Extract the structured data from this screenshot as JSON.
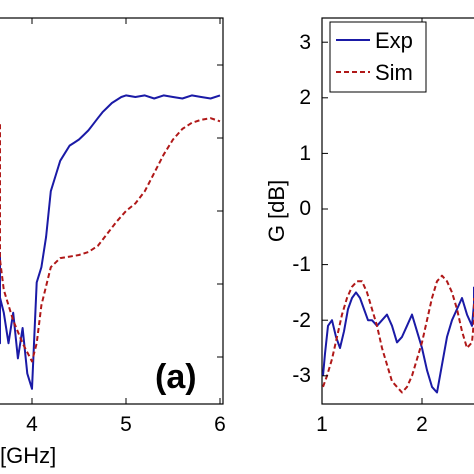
{
  "chart_data": [
    {
      "type": "line",
      "panel_label": "(a)",
      "xlabel": "[GHz]",
      "ylabel": "",
      "xlim": [
        3,
        6
      ],
      "x_ticks": [
        4,
        5,
        6
      ],
      "series": [
        {
          "name": "Exp",
          "color": "#1a1aa6",
          "style": "solid",
          "x": [
            3.0,
            3.05,
            3.1,
            3.15,
            3.2,
            3.25,
            3.3,
            3.35,
            3.4,
            3.45,
            3.5,
            3.55,
            3.6,
            3.65,
            3.7,
            3.75,
            3.8,
            3.85,
            3.9,
            3.95,
            4.0,
            4.05,
            4.1,
            4.15,
            4.2,
            4.25,
            4.3,
            4.35,
            4.4,
            4.45,
            4.5,
            4.55,
            4.6,
            4.65,
            4.7,
            4.75,
            4.8,
            4.85,
            4.9,
            4.95,
            5.0,
            5.1,
            5.2,
            5.3,
            5.4,
            5.5,
            5.6,
            5.7,
            5.8,
            5.9,
            6.0
          ],
          "y": [
            -10,
            -10,
            -11,
            -12,
            -14,
            -15,
            -14,
            -16,
            -15,
            -14,
            -12,
            -11,
            -12,
            -13,
            -14,
            -16,
            -14,
            -17,
            -15,
            -18,
            -19,
            -12,
            -11,
            -9,
            -6,
            -5,
            -4,
            -3.5,
            -3.0,
            -2.8,
            -2.6,
            -2.3,
            -2.0,
            -1.6,
            -1.2,
            -0.8,
            -0.5,
            -0.2,
            0.0,
            0.2,
            0.3,
            0.2,
            0.3,
            0.1,
            0.3,
            0.2,
            0.1,
            0.3,
            0.2,
            0.1,
            0.3
          ]
        },
        {
          "name": "Sim",
          "color": "#b01818",
          "style": "dashed",
          "x": [
            3.0,
            3.1,
            3.2,
            3.3,
            3.4,
            3.5,
            3.6,
            3.7,
            3.8,
            3.9,
            4.0,
            4.05,
            4.1,
            4.2,
            4.3,
            4.4,
            4.5,
            4.6,
            4.7,
            4.8,
            4.9,
            5.0,
            5.1,
            5.2,
            5.3,
            5.4,
            5.5,
            5.6,
            5.7,
            5.8,
            5.9,
            6.0
          ],
          "y": [
            -1.6,
            -2.0,
            -3.0,
            -4.5,
            -6.5,
            -8.5,
            -10.5,
            -12.5,
            -14.5,
            -16.0,
            -17.2,
            -16.0,
            -13.5,
            -11.0,
            -10.4,
            -10.3,
            -10.2,
            -10.0,
            -9.6,
            -8.8,
            -8.0,
            -7.3,
            -6.8,
            -6.0,
            -4.8,
            -3.6,
            -2.6,
            -1.9,
            -1.5,
            -1.3,
            -1.2,
            -1.4
          ]
        }
      ]
    },
    {
      "type": "line",
      "ylabel": "G [dB]",
      "xlabel": "",
      "xlim": [
        1,
        2.6
      ],
      "ylim": [
        -3.5,
        3.5
      ],
      "x_ticks": [
        1,
        2
      ],
      "y_ticks": [
        -3,
        -2,
        -1,
        0,
        1,
        2,
        3
      ],
      "legend_position": "top-left",
      "series": [
        {
          "name": "Exp",
          "color": "#1a1aa6",
          "style": "solid",
          "x": [
            1.0,
            1.03,
            1.06,
            1.1,
            1.14,
            1.18,
            1.22,
            1.26,
            1.3,
            1.34,
            1.38,
            1.42,
            1.46,
            1.5,
            1.55,
            1.6,
            1.65,
            1.7,
            1.75,
            1.8,
            1.85,
            1.9,
            1.95,
            2.0,
            2.05,
            2.1,
            2.15,
            2.2,
            2.25,
            2.3,
            2.35,
            2.4,
            2.45,
            2.5,
            2.55,
            2.6
          ],
          "y": [
            -3.0,
            -2.6,
            -2.1,
            -2.0,
            -2.3,
            -2.5,
            -2.2,
            -1.8,
            -1.6,
            -1.5,
            -1.6,
            -1.8,
            -2.0,
            -2.0,
            -2.1,
            -2.0,
            -1.9,
            -2.1,
            -2.4,
            -2.3,
            -2.1,
            -1.9,
            -2.2,
            -2.5,
            -2.9,
            -3.2,
            -3.3,
            -2.8,
            -2.3,
            -2.0,
            -1.8,
            -1.6,
            -1.9,
            -2.1,
            -1.7,
            -1.4
          ]
        },
        {
          "name": "Sim",
          "color": "#b01818",
          "style": "dashed",
          "x": [
            1.0,
            1.05,
            1.1,
            1.15,
            1.2,
            1.25,
            1.3,
            1.35,
            1.4,
            1.45,
            1.5,
            1.55,
            1.6,
            1.65,
            1.7,
            1.75,
            1.8,
            1.85,
            1.9,
            1.95,
            2.0,
            2.05,
            2.1,
            2.15,
            2.2,
            2.25,
            2.3,
            2.35,
            2.4,
            2.45,
            2.5,
            2.55,
            2.6
          ],
          "y": [
            -3.2,
            -3.0,
            -2.7,
            -2.3,
            -1.9,
            -1.6,
            -1.4,
            -1.3,
            -1.3,
            -1.5,
            -1.8,
            -2.1,
            -2.5,
            -2.8,
            -3.1,
            -3.2,
            -3.3,
            -3.2,
            -3.0,
            -2.7,
            -2.4,
            -2.0,
            -1.6,
            -1.3,
            -1.2,
            -1.3,
            -1.5,
            -1.8,
            -2.2,
            -2.5,
            -2.4,
            -2.0,
            -1.6
          ]
        }
      ]
    }
  ],
  "tick_labels": {
    "left_x": [
      "4",
      "5",
      "6"
    ],
    "right_x": [
      "1",
      "2"
    ],
    "right_y": [
      "3",
      "2",
      "1",
      "0",
      "-1",
      "-2",
      "-3"
    ]
  },
  "legend": {
    "exp_label": "Exp",
    "sim_label": "Sim"
  }
}
